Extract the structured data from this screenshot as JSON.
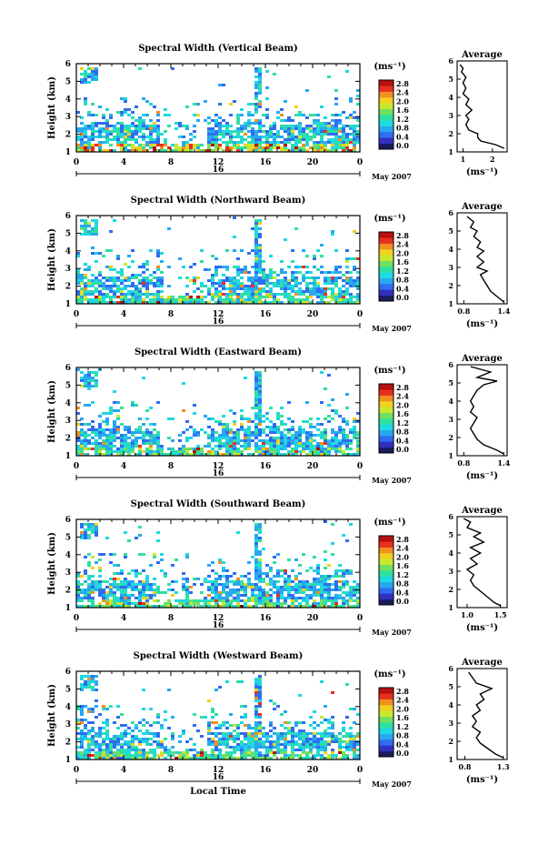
{
  "chart_data": [
    {
      "type": "heatmap",
      "title": "Spectral Width (Vertical Beam)",
      "ylabel": "Height (km)",
      "yticks": [
        "1",
        "2",
        "3",
        "4",
        "5",
        "6"
      ],
      "xticks": [
        "0",
        "4",
        "8",
        "12",
        "16",
        "20",
        "0"
      ],
      "date_day": "16",
      "date_month": "May 2007",
      "colorbar_unit": "(ms⁻¹)",
      "colorbar_ticks": [
        "0.0",
        "0.4",
        "0.8",
        "1.2",
        "1.6",
        "2.0",
        "2.4",
        "2.8"
      ],
      "avg_title": "Average",
      "avg_xticks": [
        "1",
        "2"
      ],
      "avg_yticks": [
        "1",
        "2",
        "3",
        "4",
        "5",
        "6"
      ],
      "avg_xlim": [
        0.8,
        2.5
      ],
      "avg_unit": "(ms⁻¹)",
      "avg_profile": [
        [
          2.4,
          1.2
        ],
        [
          2.1,
          1.4
        ],
        [
          1.6,
          1.6
        ],
        [
          1.5,
          1.8
        ],
        [
          1.5,
          2.0
        ],
        [
          1.2,
          2.2
        ],
        [
          1.1,
          2.5
        ],
        [
          1.2,
          2.8
        ],
        [
          1.1,
          3.0
        ],
        [
          1.3,
          3.3
        ],
        [
          1.1,
          3.6
        ],
        [
          1.2,
          3.9
        ],
        [
          1.0,
          4.2
        ],
        [
          1.1,
          4.5
        ],
        [
          1.0,
          4.8
        ],
        [
          1.1,
          5.1
        ],
        [
          0.95,
          5.4
        ],
        [
          1.0,
          5.6
        ],
        [
          0.9,
          5.8
        ]
      ]
    },
    {
      "type": "heatmap",
      "title": "Spectral Width (Northward Beam)",
      "ylabel": "Height (km)",
      "yticks": [
        "1",
        "2",
        "3",
        "4",
        "5",
        "6"
      ],
      "xticks": [
        "0",
        "4",
        "8",
        "12",
        "16",
        "20",
        "0"
      ],
      "date_day": "16",
      "date_month": "May 2007",
      "colorbar_unit": "(ms⁻¹)",
      "colorbar_ticks": [
        "0.0",
        "0.4",
        "0.8",
        "1.2",
        "1.6",
        "2.0",
        "2.4",
        "2.8"
      ],
      "avg_title": "Average",
      "avg_xticks": [
        "0.8",
        "1.4"
      ],
      "avg_yticks": [
        "1",
        "2",
        "3",
        "4",
        "5",
        "6"
      ],
      "avg_xlim": [
        0.7,
        1.45
      ],
      "avg_unit": "(ms⁻¹)",
      "avg_profile": [
        [
          1.4,
          1.1
        ],
        [
          1.3,
          1.4
        ],
        [
          1.2,
          1.7
        ],
        [
          1.15,
          2.0
        ],
        [
          1.1,
          2.3
        ],
        [
          1.05,
          2.6
        ],
        [
          1.15,
          2.8
        ],
        [
          1.0,
          3.0
        ],
        [
          1.1,
          3.3
        ],
        [
          1.0,
          3.6
        ],
        [
          1.1,
          3.9
        ],
        [
          1.0,
          4.1
        ],
        [
          1.05,
          4.4
        ],
        [
          0.95,
          4.7
        ],
        [
          1.0,
          5.0
        ],
        [
          0.9,
          5.2
        ],
        [
          0.95,
          5.5
        ],
        [
          0.85,
          5.8
        ]
      ]
    },
    {
      "type": "heatmap",
      "title": "Spectral Width (Eastward Beam)",
      "ylabel": "Height (km)",
      "yticks": [
        "1",
        "2",
        "3",
        "4",
        "5",
        "6"
      ],
      "xticks": [
        "0",
        "4",
        "8",
        "12",
        "16",
        "20",
        "0"
      ],
      "date_day": "16",
      "date_month": "May 2007",
      "colorbar_unit": "(ms⁻¹)",
      "colorbar_ticks": [
        "0.0",
        "0.4",
        "0.8",
        "1.2",
        "1.6",
        "2.0",
        "2.4",
        "2.8"
      ],
      "avg_title": "Average",
      "avg_xticks": [
        "0.8",
        "1.4"
      ],
      "avg_yticks": [
        "1",
        "2",
        "3",
        "4",
        "5",
        "6"
      ],
      "avg_xlim": [
        0.7,
        1.45
      ],
      "avg_unit": "(ms⁻¹)",
      "avg_profile": [
        [
          1.4,
          1.1
        ],
        [
          1.3,
          1.3
        ],
        [
          1.1,
          1.6
        ],
        [
          1.0,
          1.9
        ],
        [
          0.95,
          2.2
        ],
        [
          0.9,
          2.5
        ],
        [
          0.95,
          2.8
        ],
        [
          1.0,
          3.1
        ],
        [
          0.9,
          3.4
        ],
        [
          0.95,
          3.7
        ],
        [
          0.9,
          4.0
        ],
        [
          0.95,
          4.3
        ],
        [
          1.0,
          4.6
        ],
        [
          1.1,
          4.9
        ],
        [
          1.3,
          5.1
        ],
        [
          1.0,
          5.3
        ],
        [
          1.2,
          5.6
        ],
        [
          0.9,
          5.9
        ]
      ]
    },
    {
      "type": "heatmap",
      "title": "Spectral Width (Southward Beam)",
      "ylabel": "Height (km)",
      "yticks": [
        "1",
        "2",
        "3",
        "4",
        "5",
        "6"
      ],
      "xticks": [
        "0",
        "4",
        "8",
        "12",
        "16",
        "20",
        "0"
      ],
      "date_day": "16",
      "date_month": "May 2007",
      "colorbar_unit": "(ms⁻¹)",
      "colorbar_ticks": [
        "0.0",
        "0.4",
        "0.8",
        "1.2",
        "1.6",
        "2.0",
        "2.4",
        "2.8"
      ],
      "avg_title": "Average",
      "avg_xticks": [
        "1.0",
        "1.5"
      ],
      "avg_yticks": [
        "1",
        "2",
        "3",
        "4",
        "5",
        "6"
      ],
      "avg_xlim": [
        0.85,
        1.6
      ],
      "avg_unit": "(ms⁻¹)",
      "avg_profile": [
        [
          1.5,
          1.1
        ],
        [
          1.4,
          1.3
        ],
        [
          1.3,
          1.6
        ],
        [
          1.2,
          1.9
        ],
        [
          1.1,
          2.2
        ],
        [
          1.05,
          2.5
        ],
        [
          1.1,
          2.8
        ],
        [
          1.0,
          3.1
        ],
        [
          1.15,
          3.4
        ],
        [
          1.05,
          3.7
        ],
        [
          1.2,
          4.0
        ],
        [
          1.05,
          4.3
        ],
        [
          1.25,
          4.6
        ],
        [
          1.1,
          4.9
        ],
        [
          1.2,
          5.1
        ],
        [
          1.0,
          5.4
        ],
        [
          1.05,
          5.7
        ],
        [
          0.95,
          5.9
        ]
      ]
    },
    {
      "type": "heatmap",
      "title": "Spectral Width (Westward Beam)",
      "ylabel": "Height (km)",
      "yticks": [
        "1",
        "2",
        "3",
        "4",
        "5",
        "6"
      ],
      "xticks": [
        "0",
        "4",
        "8",
        "12",
        "16",
        "20",
        "0"
      ],
      "date_day": "16",
      "date_month": "May 2007",
      "colorbar_unit": "(ms⁻¹)",
      "colorbar_ticks": [
        "0.0",
        "0.4",
        "0.8",
        "1.2",
        "1.6",
        "2.0",
        "2.4",
        "2.8"
      ],
      "avg_title": "Average",
      "avg_xticks": [
        "0.8",
        "1.3"
      ],
      "avg_yticks": [
        "1",
        "2",
        "3",
        "4",
        "5",
        "6"
      ],
      "avg_xlim": [
        0.7,
        1.35
      ],
      "avg_unit": "(ms⁻¹)",
      "avg_profile": [
        [
          1.3,
          1.1
        ],
        [
          1.2,
          1.3
        ],
        [
          1.1,
          1.6
        ],
        [
          1.0,
          1.9
        ],
        [
          0.95,
          2.2
        ],
        [
          1.0,
          2.5
        ],
        [
          0.9,
          2.8
        ],
        [
          0.95,
          3.1
        ],
        [
          0.9,
          3.4
        ],
        [
          1.0,
          3.7
        ],
        [
          0.95,
          4.0
        ],
        [
          1.05,
          4.3
        ],
        [
          1.0,
          4.6
        ],
        [
          1.15,
          4.9
        ],
        [
          0.95,
          5.2
        ],
        [
          0.9,
          5.5
        ],
        [
          0.85,
          5.8
        ]
      ]
    }
  ],
  "xlabel_bottom": "Local Time",
  "colorbar_colors": [
    "#1a1a60",
    "#3030c0",
    "#2f6df0",
    "#27a8f0",
    "#1fd8e0",
    "#30e0a0",
    "#70e060",
    "#c8e830",
    "#f0d020",
    "#f09020",
    "#e83020",
    "#b81010"
  ]
}
